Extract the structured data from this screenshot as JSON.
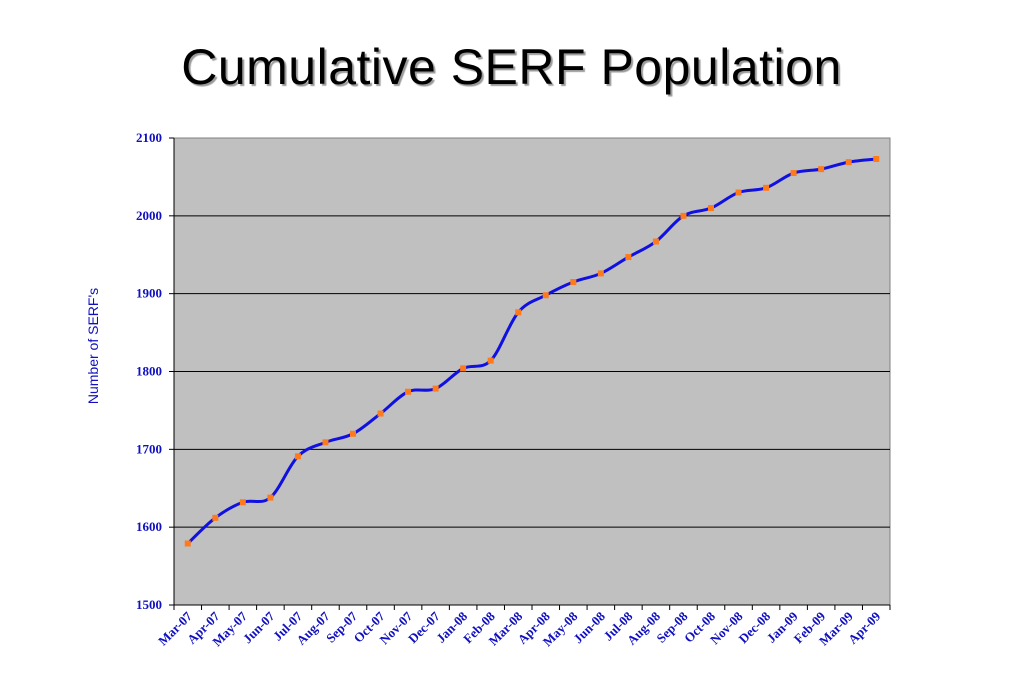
{
  "title": "Cumulative SERF Population",
  "chart_data": {
    "type": "line",
    "title": "Cumulative SERF Population",
    "xlabel": "",
    "ylabel": "Number of SERF's",
    "ylim": [
      1500,
      2100
    ],
    "yticks": [
      1500,
      1600,
      1700,
      1800,
      1900,
      2000,
      2100
    ],
    "grid": true,
    "legend": "none",
    "categories": [
      "Mar-07",
      "Apr-07",
      "May-07",
      "Jun-07",
      "Jul-07",
      "Aug-07",
      "Sep-07",
      "Oct-07",
      "Nov-07",
      "Dec-07",
      "Jan-08",
      "Feb-08",
      "Mar-08",
      "Apr-08",
      "May-08",
      "Jun-08",
      "Jul-08",
      "Aug-08",
      "Sep-08",
      "Oct-08",
      "Nov-08",
      "Dec-08",
      "Jan-09",
      "Feb-09",
      "Mar-09",
      "Apr-09"
    ],
    "series": [
      {
        "values": [
          1579,
          1612,
          1632,
          1638,
          1691,
          1709,
          1720,
          1746,
          1774,
          1778,
          1804,
          1814,
          1876,
          1898,
          1915,
          1926,
          1947,
          1967,
          2000,
          2010,
          2030,
          2036,
          2055,
          2060,
          2069,
          2073
        ]
      }
    ],
    "colors": {
      "line": "#1010e0",
      "marker": "#ff7a1a",
      "plot_bg": "#c0c0c0",
      "grid": "#000000",
      "text": "#1010c0"
    }
  }
}
